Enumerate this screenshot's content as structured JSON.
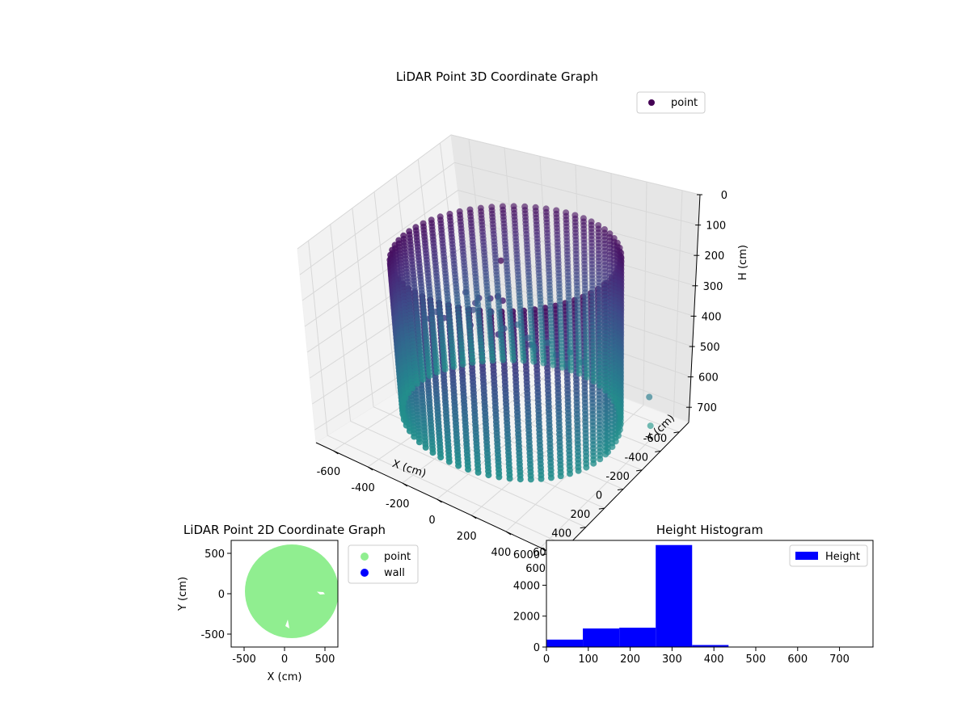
{
  "chart_data": [
    {
      "type": "scatter",
      "projection": "3d",
      "title": "LiDAR Point 3D Coordinate Graph",
      "xlabel": "X (cm)",
      "ylabel": "Y (cm)",
      "zlabel": "H (cm)",
      "xlim": [
        -700,
        700
      ],
      "ylim": [
        -700,
        700
      ],
      "zlim": [
        0,
        750
      ],
      "z_inverted": true,
      "x_ticks": [
        -600,
        -400,
        -200,
        0,
        200,
        400,
        600
      ],
      "y_ticks": [
        -600,
        -400,
        -200,
        0,
        200,
        400,
        600
      ],
      "z_ticks": [
        0,
        100,
        200,
        300,
        400,
        500,
        600,
        700
      ],
      "colormap": "viridis",
      "legend": {
        "position": "upper-right",
        "entries": [
          {
            "label": "point",
            "color": "#440154"
          }
        ]
      },
      "series": [
        {
          "name": "point",
          "shape": "ring-wall",
          "center": [
            50,
            30
          ],
          "radius": 560,
          "h_range": [
            110,
            660
          ],
          "angle_step_deg": 5.5,
          "h_step": 12,
          "floor_points": [
            [
              -300,
              -120,
              330
            ],
            [
              -220,
              -60,
              360
            ],
            [
              -150,
              20,
              300
            ],
            [
              -80,
              90,
              250
            ],
            [
              20,
              140,
              220
            ],
            [
              90,
              180,
              190
            ],
            [
              150,
              230,
              180
            ],
            [
              -40,
              -60,
              390
            ],
            [
              60,
              -120,
              420
            ],
            [
              150,
              -40,
              410
            ],
            [
              220,
              60,
              380
            ],
            [
              280,
              -140,
              470
            ],
            [
              340,
              -40,
              440
            ],
            [
              -360,
              60,
              360
            ],
            [
              -300,
              210,
              330
            ],
            [
              -180,
              260,
              290
            ],
            [
              0,
              300,
              270
            ],
            [
              180,
              330,
              260
            ],
            [
              300,
              230,
              300
            ],
            [
              380,
              120,
              350
            ],
            [
              -250,
              -260,
              430
            ],
            [
              -120,
              -300,
              460
            ],
            [
              40,
              -330,
              500
            ],
            [
              200,
              -290,
              490
            ],
            [
              320,
              -220,
              480
            ]
          ],
          "outliers": [
            [
              40,
              60,
              110
            ],
            [
              650,
              -350,
              570
            ],
            [
              620,
              -420,
              690
            ]
          ]
        }
      ]
    },
    {
      "type": "scatter",
      "title": "LiDAR Point 2D Coordinate Graph",
      "xlabel": "X (cm)",
      "ylabel": "Y (cm)",
      "xlim": [
        -660,
        660
      ],
      "ylim": [
        -660,
        660
      ],
      "x_ticks": [
        -500,
        0,
        500
      ],
      "y_ticks": [
        -500,
        0,
        500
      ],
      "legend": {
        "position": "outside-right",
        "entries": [
          {
            "label": "point",
            "color": "#90ee90"
          },
          {
            "label": "wall",
            "color": "#0000ff"
          }
        ]
      },
      "series": [
        {
          "name": "point",
          "color": "#90ee90",
          "shape": "filled-disc",
          "center": [
            90,
            30
          ],
          "radius": 580,
          "gaps": [
            [
              [
                480,
                20
              ],
              [
                400,
                25
              ],
              [
                440,
                -10
              ],
              [
                500,
                -5
              ]
            ],
            [
              [
                40,
                -320
              ],
              [
                60,
                -430
              ],
              [
                10,
                -400
              ]
            ]
          ]
        },
        {
          "name": "wall",
          "color": "#0000ff",
          "points": []
        }
      ]
    },
    {
      "type": "bar",
      "subtype": "histogram",
      "title": "Height Histogram",
      "xlim": [
        0,
        780
      ],
      "ylim": [
        0,
        6900
      ],
      "x_ticks": [
        0,
        100,
        200,
        300,
        400,
        500,
        600,
        700
      ],
      "y_ticks": [
        0,
        2000,
        4000,
        6000
      ],
      "legend": {
        "position": "upper-right",
        "entries": [
          {
            "label": "Height",
            "color": "#0000ff"
          }
        ]
      },
      "bin_edges": [
        0,
        87,
        174,
        261,
        348,
        435,
        522,
        609,
        696,
        783
      ],
      "series": [
        {
          "name": "Height",
          "color": "#0000ff",
          "values": [
            480,
            1200,
            1250,
            6600,
            130,
            20,
            10,
            10,
            5
          ]
        }
      ]
    }
  ]
}
